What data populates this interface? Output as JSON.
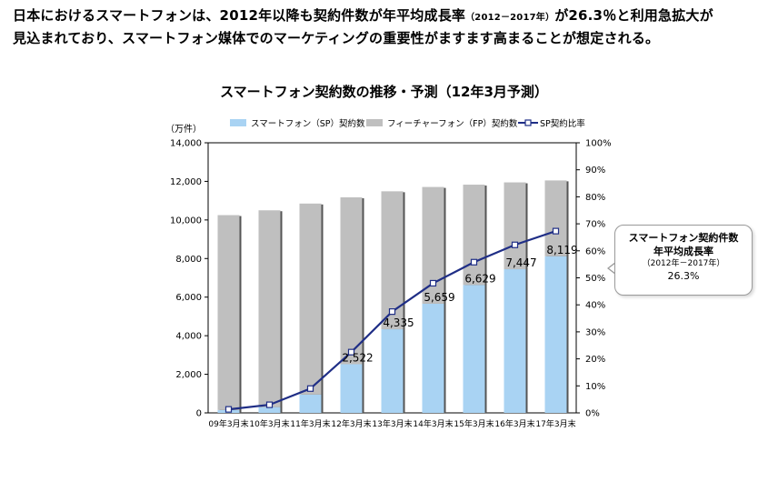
{
  "headline": {
    "line1_a": "日本におけるスマートフォンは、2012年以降も契約件数が年平均成長率",
    "line1_small": "（2012－2017年）",
    "line1_b": "が26.3％と利用急拡大が",
    "line2": "見込まれており、スマートフォン媒体でのマーケティングの重要性がますます高まることが想定される。"
  },
  "chart_data": {
    "type": "bar",
    "title": "スマートフォン契約数の推移・予測（12年3月予測）",
    "y_unit_label": "（万件）",
    "categories": [
      "09年3月末",
      "10年3月末",
      "11年3月末",
      "12年3月末",
      "13年3月末",
      "14年3月末",
      "15年3月末",
      "16年3月末",
      "17年3月末"
    ],
    "ylim": [
      0,
      14000
    ],
    "y_ticks": [
      "0",
      "2,000",
      "4,000",
      "6,000",
      "8,000",
      "10,000",
      "12,000",
      "14,000"
    ],
    "y2lim": [
      0,
      100
    ],
    "y2_ticks": [
      "0%",
      "10%",
      "20%",
      "30%",
      "40%",
      "50%",
      "60%",
      "70%",
      "80%",
      "90%",
      "100%"
    ],
    "series": [
      {
        "name": "スマートフォン（SP）契約数",
        "kind": "bar",
        "color": "#a9d3f3",
        "values": [
          150,
          300,
          950,
          2522,
          4335,
          5659,
          6629,
          7447,
          8119
        ],
        "labels": [
          "",
          "",
          "",
          "2,522",
          "4,335",
          "5,659",
          "6,629",
          "7,447",
          "8,119"
        ]
      },
      {
        "name": "フィーチャーフォン（FP）契約数",
        "kind": "bar",
        "color": "#bfbfbf",
        "values": [
          10100,
          10200,
          9900,
          8650,
          7150,
          6050,
          5200,
          4500,
          3930
        ]
      },
      {
        "name": "SP契約比率",
        "kind": "line",
        "color": "#1f2e86",
        "axis": "right",
        "values": [
          1.3,
          3.0,
          9.0,
          22.5,
          37.5,
          48.0,
          55.8,
          62.2,
          67.3
        ]
      }
    ],
    "legend_position": "top",
    "grid": false
  },
  "callout": {
    "line1": "スマートフォン契約件数",
    "line2": "年平均成長率",
    "line3": "（2012年－2017年）",
    "line4": "26.3%"
  }
}
